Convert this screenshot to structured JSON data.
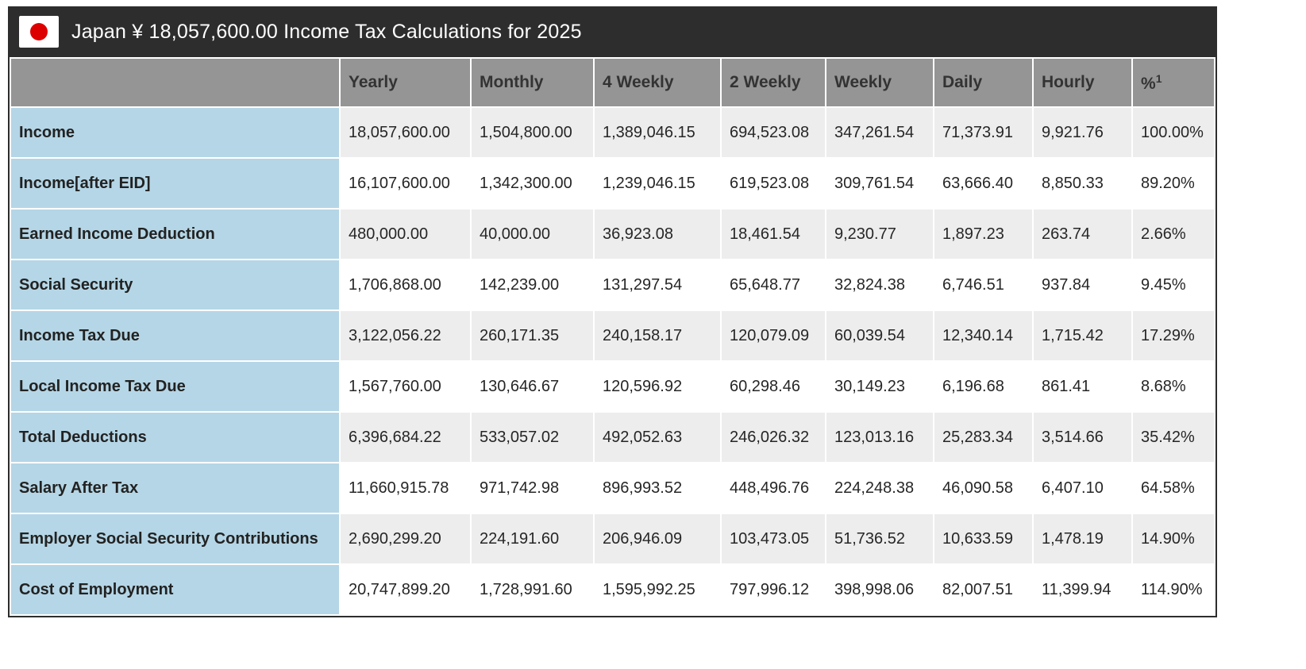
{
  "header": {
    "title": "Japan ¥ 18,057,600.00 Income Tax Calculations for 2025",
    "flag": "japan-flag",
    "background": "#2d2d2d"
  },
  "colors": {
    "titlebar_bg": "#2d2d2d",
    "column_header_bg": "#959595",
    "row_label_bg": "#b5d6e6",
    "alt_row_bg": "#ededed",
    "flag_red": "#dd0000"
  },
  "table": {
    "columns": [
      {
        "label": ""
      },
      {
        "label": "Yearly"
      },
      {
        "label": "Monthly"
      },
      {
        "label": "4 Weekly"
      },
      {
        "label": "2 Weekly"
      },
      {
        "label": "Weekly"
      },
      {
        "label": "Daily"
      },
      {
        "label": "Hourly"
      },
      {
        "label": "%",
        "sup": "1"
      }
    ],
    "rows": [
      {
        "label": "Income",
        "values": [
          "18,057,600.00",
          "1,504,800.00",
          "1,389,046.15",
          "694,523.08",
          "347,261.54",
          "71,373.91",
          "9,921.76",
          "100.00%"
        ]
      },
      {
        "label": "Income[after EID]",
        "values": [
          "16,107,600.00",
          "1,342,300.00",
          "1,239,046.15",
          "619,523.08",
          "309,761.54",
          "63,666.40",
          "8,850.33",
          "89.20%"
        ]
      },
      {
        "label": "Earned Income Deduction",
        "values": [
          "480,000.00",
          "40,000.00",
          "36,923.08",
          "18,461.54",
          "9,230.77",
          "1,897.23",
          "263.74",
          "2.66%"
        ]
      },
      {
        "label": "Social Security",
        "values": [
          "1,706,868.00",
          "142,239.00",
          "131,297.54",
          "65,648.77",
          "32,824.38",
          "6,746.51",
          "937.84",
          "9.45%"
        ]
      },
      {
        "label": "Income Tax Due",
        "values": [
          "3,122,056.22",
          "260,171.35",
          "240,158.17",
          "120,079.09",
          "60,039.54",
          "12,340.14",
          "1,715.42",
          "17.29%"
        ]
      },
      {
        "label": "Local Income Tax Due",
        "values": [
          "1,567,760.00",
          "130,646.67",
          "120,596.92",
          "60,298.46",
          "30,149.23",
          "6,196.68",
          "861.41",
          "8.68%"
        ]
      },
      {
        "label": "Total Deductions",
        "values": [
          "6,396,684.22",
          "533,057.02",
          "492,052.63",
          "246,026.32",
          "123,013.16",
          "25,283.34",
          "3,514.66",
          "35.42%"
        ]
      },
      {
        "label": "Salary After Tax",
        "values": [
          "11,660,915.78",
          "971,742.98",
          "896,993.52",
          "448,496.76",
          "224,248.38",
          "46,090.58",
          "6,407.10",
          "64.58%"
        ]
      },
      {
        "label": "Employer Social Security Contributions",
        "values": [
          "2,690,299.20",
          "224,191.60",
          "206,946.09",
          "103,473.05",
          "51,736.52",
          "10,633.59",
          "1,478.19",
          "14.90%"
        ]
      },
      {
        "label": "Cost of Employment",
        "values": [
          "20,747,899.20",
          "1,728,991.60",
          "1,595,992.25",
          "797,996.12",
          "398,998.06",
          "82,007.51",
          "11,399.94",
          "114.90%"
        ]
      }
    ]
  }
}
